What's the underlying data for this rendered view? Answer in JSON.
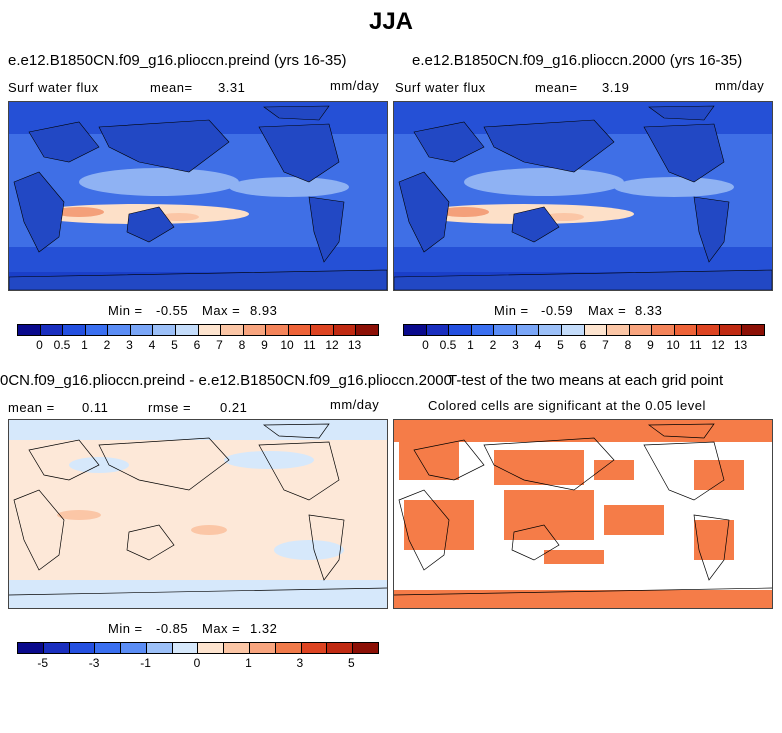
{
  "title": "JJA",
  "panels": [
    {
      "case": "e.e12.B1850CN.f09_g16.plioccn.preind (yrs 16-35)",
      "variable": "Surf water flux",
      "mean_label": "mean=",
      "mean": "3.31",
      "units": "mm/day",
      "min_label": "Min =",
      "min": "-0.55",
      "max_label": "Max =",
      "max": "8.93"
    },
    {
      "case": "e.e12.B1850CN.f09_g16.plioccn.2000 (yrs 16-35)",
      "variable": "Surf water flux",
      "mean_label": "mean=",
      "mean": "3.19",
      "units": "mm/day",
      "min_label": "Min =",
      "min": "-0.59",
      "max_label": "Max =",
      "max": "8.33"
    },
    {
      "case": "0CN.f09_g16.plioccn.preind - e.e12.B1850CN.f09_g16.plioccn.2000",
      "mean_label": "mean =",
      "mean": "0.11",
      "rmse_label": "rmse =",
      "rmse": "0.21",
      "units": "mm/day",
      "min_label": "Min =",
      "min": "-0.85",
      "max_label": "Max =",
      "max": "1.32"
    },
    {
      "case": "T-test of the two means at each grid point",
      "note": "Colored cells are significant at the 0.05 level"
    }
  ],
  "colorbar_abs": {
    "colors": [
      "#0a0a8c",
      "#1a2fbf",
      "#2450e0",
      "#3a6ff0",
      "#5b8df5",
      "#7aa6f7",
      "#9cc0f8",
      "#c4dcfa",
      "#fde4cf",
      "#fbc6a6",
      "#f8a57f",
      "#f4845a",
      "#ee6338",
      "#dd4422",
      "#c02a12",
      "#8c1006"
    ],
    "ticks": [
      "0",
      "0.5",
      "1",
      "2",
      "3",
      "4",
      "5",
      "6",
      "7",
      "8",
      "9",
      "10",
      "11",
      "12",
      "13"
    ]
  },
  "colorbar_diff": {
    "colors": [
      "#0a0a8c",
      "#1a2fbf",
      "#2450e0",
      "#3a6ff0",
      "#5b8df5",
      "#9cc0f8",
      "#d6e8fb",
      "#fde4cf",
      "#fbc6a6",
      "#f8a57f",
      "#f07a4a",
      "#dd4422",
      "#c02a12",
      "#8c1006"
    ],
    "ticks": [
      "-5",
      "-3",
      "-1",
      "0",
      "1",
      "3",
      "5"
    ]
  },
  "colors": {
    "ocean_dark": "#1a3fc9",
    "ocean_mid": "#4f7ee8",
    "ocean_light": "#9dbcf5",
    "diff_bg": "#fde8d8",
    "diff_neg": "#d6e8fb",
    "signif": "#f57c48"
  }
}
